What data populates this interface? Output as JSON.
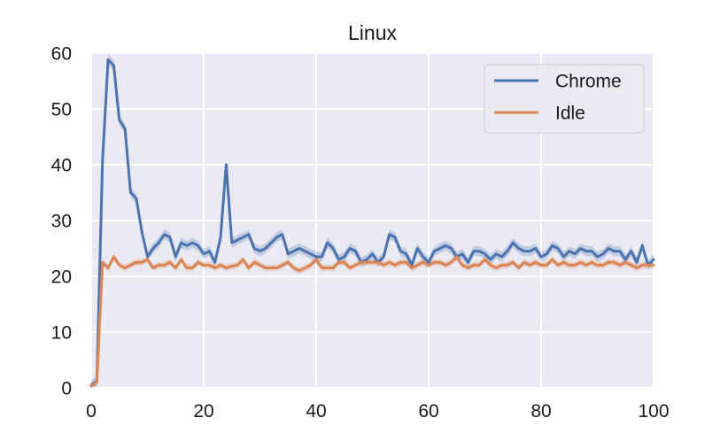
{
  "chart_data": {
    "type": "line",
    "title": "Linux",
    "xlabel": "",
    "ylabel": "",
    "xlim": [
      0,
      100
    ],
    "ylim": [
      0,
      60
    ],
    "x_ticks": [
      0,
      20,
      40,
      60,
      80,
      100
    ],
    "y_ticks": [
      0,
      10,
      20,
      30,
      40,
      50,
      60
    ],
    "grid": true,
    "background": "#eaeaf2",
    "legend_position": "top-right",
    "x": [
      0,
      1,
      2,
      3,
      4,
      5,
      6,
      7,
      8,
      9,
      10,
      11,
      12,
      13,
      14,
      15,
      16,
      17,
      18,
      19,
      20,
      21,
      22,
      23,
      24,
      25,
      26,
      27,
      28,
      29,
      30,
      31,
      32,
      33,
      34,
      35,
      36,
      37,
      38,
      39,
      40,
      41,
      42,
      43,
      44,
      45,
      46,
      47,
      48,
      49,
      50,
      51,
      52,
      53,
      54,
      55,
      56,
      57,
      58,
      59,
      60,
      61,
      62,
      63,
      64,
      65,
      66,
      67,
      68,
      69,
      70,
      71,
      72,
      73,
      74,
      75,
      76,
      77,
      78,
      79,
      80,
      81,
      82,
      83,
      84,
      85,
      86,
      87,
      88,
      89,
      90,
      91,
      92,
      93,
      94,
      95,
      96,
      97,
      98,
      99,
      100
    ],
    "series": [
      {
        "name": "Chrome",
        "color": "#4c72b0",
        "values": [
          0.5,
          1.2,
          40.5,
          58.8,
          57.8,
          48.0,
          46.5,
          35.0,
          34.0,
          28.0,
          23.5,
          25.0,
          26.0,
          27.5,
          27.0,
          23.5,
          26.0,
          25.5,
          26.0,
          25.5,
          24.0,
          24.5,
          22.5,
          27.0,
          40.0,
          26.0,
          26.5,
          27.0,
          27.5,
          25.0,
          24.5,
          25.0,
          26.0,
          27.0,
          27.5,
          24.0,
          24.5,
          25.0,
          24.5,
          24.0,
          23.5,
          23.5,
          26.0,
          25.0,
          23.0,
          23.5,
          25.0,
          24.5,
          22.5,
          23.0,
          24.0,
          22.5,
          23.5,
          27.5,
          27.0,
          24.5,
          24.0,
          22.0,
          25.0,
          23.5,
          22.5,
          24.5,
          25.0,
          25.5,
          25.0,
          23.5,
          24.0,
          22.5,
          24.5,
          24.5,
          24.0,
          23.0,
          24.0,
          23.5,
          24.5,
          26.0,
          25.0,
          24.5,
          24.5,
          25.0,
          23.5,
          24.0,
          25.5,
          25.0,
          23.5,
          24.5,
          24.0,
          25.0,
          24.5,
          24.5,
          23.5,
          24.0,
          25.0,
          24.5,
          24.5,
          23.0,
          24.5,
          22.5,
          25.5,
          22.0,
          23.0
        ]
      },
      {
        "name": "Idle",
        "color": "#dd8452",
        "values": [
          0.3,
          1.0,
          22.5,
          21.5,
          23.5,
          22.0,
          21.5,
          22.0,
          22.5,
          22.5,
          23.0,
          21.5,
          22.0,
          22.0,
          22.5,
          21.5,
          23.0,
          21.5,
          21.5,
          22.5,
          22.0,
          22.0,
          21.5,
          22.0,
          21.5,
          21.8,
          22.0,
          23.0,
          21.5,
          22.5,
          22.0,
          21.5,
          21.5,
          21.5,
          22.0,
          22.5,
          21.5,
          21.0,
          21.5,
          22.0,
          23.0,
          21.5,
          21.5,
          21.5,
          22.5,
          22.5,
          21.5,
          22.0,
          22.5,
          22.5,
          22.5,
          22.5,
          22.0,
          22.5,
          22.0,
          22.5,
          22.5,
          21.5,
          22.0,
          22.5,
          22.0,
          22.5,
          22.5,
          22.0,
          22.5,
          23.5,
          22.0,
          21.5,
          22.0,
          22.0,
          23.0,
          22.0,
          21.5,
          22.0,
          22.0,
          22.5,
          21.5,
          22.5,
          22.0,
          22.5,
          22.0,
          22.0,
          23.0,
          22.0,
          22.5,
          22.0,
          22.0,
          22.5,
          22.0,
          22.5,
          22.0,
          22.0,
          22.5,
          22.5,
          22.0,
          22.5,
          22.0,
          21.5,
          22.0,
          22.0,
          22.0
        ]
      }
    ]
  }
}
